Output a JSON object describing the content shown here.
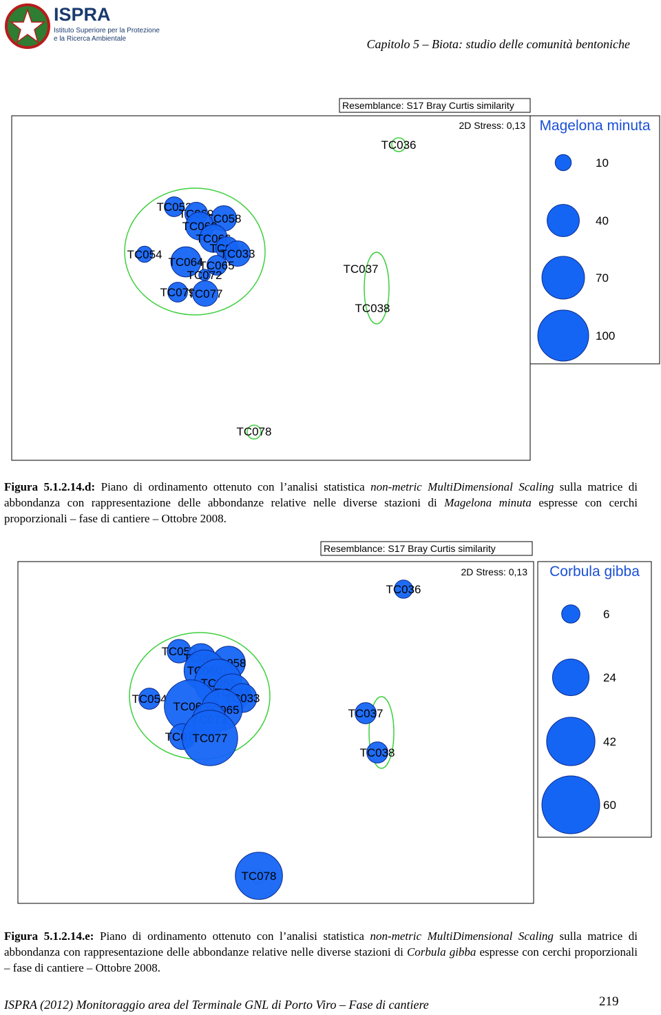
{
  "header": {
    "logo": "ISPRA",
    "logo_line1": "Istituto Superiore per la Protezione",
    "logo_line2": "e la Ricerca Ambientale",
    "chapter": "Capitolo 5 – Biota: studio delle comunità bentoniche"
  },
  "figures": [
    {
      "resemblance": "Resemblance: S17 Bray Curtis similarity",
      "stress": "2D Stress: 0,13",
      "species": "Magelona minuta",
      "legend": [
        10,
        40,
        70,
        100
      ],
      "points": [
        {
          "label": "TC052",
          "value": 15
        },
        {
          "label": "TC069",
          "value": 20
        },
        {
          "label": "TC058",
          "value": 25
        },
        {
          "label": "TC060",
          "value": 30
        },
        {
          "label": "TC066",
          "value": 30
        },
        {
          "label": "TC034",
          "value": 20
        },
        {
          "label": "TC054",
          "value": 10
        },
        {
          "label": "TC033",
          "value": 25
        },
        {
          "label": "TC064",
          "value": 35
        },
        {
          "label": "TC065",
          "value": 15
        },
        {
          "label": "TC072",
          "value": 5
        },
        {
          "label": "TC079",
          "value": 15
        },
        {
          "label": "TC077",
          "value": 25
        },
        {
          "label": "TC036",
          "value": 0
        },
        {
          "label": "TC037",
          "value": 0
        },
        {
          "label": "TC038",
          "value": 0
        },
        {
          "label": "TC078",
          "value": 0
        }
      ],
      "caption": {
        "label": "Figura 5.1.2.14.d:",
        "text": [
          " Piano di ordinamento ottenuto con l’analisi statistica ",
          "non-metric MultiDimensional Scaling",
          " sulla matrice di abbondanza con rappresentazione delle abbondanze relative nelle diverse stazioni di ",
          "Magelona minuta",
          " espresse con cerchi proporzionali – fase di cantiere – Ottobre 2008."
        ]
      }
    },
    {
      "resemblance": "Resemblance: S17 Bray Curtis similarity",
      "stress": "2D Stress: 0,13",
      "species": "Corbula gibba",
      "legend": [
        6,
        24,
        42,
        60
      ],
      "points": [
        {
          "label": "TC052",
          "value": 10
        },
        {
          "label": "TC069",
          "value": 15
        },
        {
          "label": "TC058",
          "value": 20
        },
        {
          "label": "TC060",
          "value": 30
        },
        {
          "label": "TC066",
          "value": 40
        },
        {
          "label": "TC034",
          "value": 25
        },
        {
          "label": "TC054",
          "value": 8
        },
        {
          "label": "TC033",
          "value": 15
        },
        {
          "label": "TC064",
          "value": 50
        },
        {
          "label": "TC065",
          "value": 30
        },
        {
          "label": "TC072",
          "value": 20
        },
        {
          "label": "TC079",
          "value": 12
        },
        {
          "label": "TC077",
          "value": 55
        },
        {
          "label": "TC036",
          "value": 6
        },
        {
          "label": "TC037",
          "value": 8
        },
        {
          "label": "TC038",
          "value": 8
        },
        {
          "label": "TC078",
          "value": 40
        }
      ],
      "caption": {
        "label": "Figura 5.1.2.14.e:",
        "text": [
          " Piano di ordinamento ottenuto con l’analisi statistica ",
          "non-metric MultiDimensional Scaling",
          " sulla matrice di abbondanza con rappresentazione delle abbondanze relative nelle diverse stazioni di ",
          "Corbula gibba",
          " espresse con cerchi proporzionali – fase di cantiere – Ottobre 2008."
        ]
      }
    }
  ],
  "footer": {
    "text": "ISPRA (2012) Monitoraggio area del Terminale GNL di Porto Viro – Fase di cantiere",
    "page": "219"
  }
}
